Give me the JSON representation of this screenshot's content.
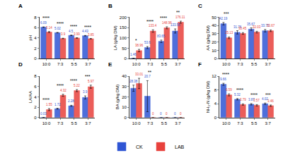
{
  "chart_data": [
    {
      "type": "bar",
      "label": "A",
      "y_label": "pH",
      "categories": [
        "10:0",
        "7:3",
        "5:5",
        "3:7"
      ],
      "series": [
        {
          "name": "CK",
          "color": "#2f55d4",
          "values": [
            6.09,
            5.02,
            4.5,
            4.43
          ],
          "errors": [
            0.05,
            0.05,
            0.05,
            0.05
          ]
        },
        {
          "name": "LAB",
          "color": "#e8413c",
          "values": [
            5.14,
            3.9,
            3.99,
            3.85
          ],
          "errors": [
            0.1,
            0.05,
            0.05,
            0.05
          ]
        }
      ],
      "significance": [
        "****",
        "****",
        "****",
        "****"
      ],
      "ylim": [
        0,
        8
      ],
      "yticks": [
        0,
        2,
        4,
        6,
        8
      ],
      "data_labels": true,
      "legend": "bottom"
    },
    {
      "type": "bar",
      "label": "B",
      "y_label": "LA (g/kg DM)",
      "categories": [
        "10:0",
        "7:3",
        "5:5",
        "3:7"
      ],
      "series": [
        {
          "name": "CK",
          "color": "#2f55d4",
          "values": [
            1.46,
            53.6,
            83.65,
            133.55
          ],
          "errors": [
            0.5,
            5,
            6,
            10
          ]
        },
        {
          "name": "LAB",
          "color": "#e8413c",
          "values": [
            38.96,
            133.4,
            148.96,
            176.11
          ],
          "errors": [
            6,
            6,
            5,
            5
          ]
        }
      ],
      "significance": [
        "*",
        "****",
        "****",
        "**"
      ],
      "ylim": [
        0,
        200
      ],
      "yticks": [
        0,
        50,
        100,
        150,
        200
      ],
      "data_labels": true
    },
    {
      "type": "bar",
      "label": "C",
      "y_label": "AA (g/kg DM)",
      "categories": [
        "10:0",
        "7:3",
        "5:5",
        "3:7"
      ],
      "series": [
        {
          "name": "CK",
          "color": "#2f55d4",
          "values": [
            42.19,
            31.76,
            35.67,
            33.75
          ],
          "errors": [
            1.5,
            2,
            1.5,
            1.5
          ]
        },
        {
          "name": "LAB",
          "color": "#e8413c",
          "values": [
            25.13,
            30.45,
            32.03,
            33.67
          ],
          "errors": [
            1,
            1,
            1,
            1
          ]
        }
      ],
      "significance": [
        "***",
        null,
        null,
        null
      ],
      "ylim": [
        0,
        50
      ],
      "yticks": [
        0,
        10,
        20,
        30,
        40,
        50
      ],
      "data_labels": true
    },
    {
      "type": "bar",
      "label": "D",
      "y_label": "LA/AA",
      "categories": [
        "10:0",
        "7:3",
        "5:5",
        "3:7"
      ],
      "series": [
        {
          "name": "CK",
          "color": "#2f55d4",
          "values": [
            0.03,
            1.72,
            2.28,
            3.9
          ],
          "errors": [
            0.01,
            0.1,
            0.1,
            0.3
          ]
        },
        {
          "name": "LAB",
          "color": "#e8413c",
          "values": [
            1.55,
            4.32,
            5.22,
            5.97
          ],
          "errors": [
            0.2,
            0.2,
            0.2,
            0.3
          ]
        }
      ],
      "significance": [
        "****",
        "****",
        "****",
        "***"
      ],
      "ylim": [
        0,
        8
      ],
      "yticks": [
        0,
        2,
        4,
        6,
        8
      ],
      "data_labels": true
    },
    {
      "type": "bar",
      "label": "E",
      "y_label": "BA (g/kg DM)",
      "categories": [
        "10:0",
        "7:3",
        "5:5",
        "3:7"
      ],
      "series": [
        {
          "name": "CK",
          "color": "#2f55d4",
          "values": [
            28.38,
            20.7,
            0,
            0
          ],
          "errors": [
            3,
            15,
            0,
            0
          ]
        },
        {
          "name": "LAB",
          "color": "#e8413c",
          "values": [
            33.01,
            0,
            0,
            0
          ],
          "errors": [
            5,
            0,
            0,
            0
          ]
        }
      ],
      "significance": [
        null,
        "**",
        null,
        null
      ],
      "ylim": [
        0,
        40
      ],
      "yticks": [
        0,
        10,
        20,
        30,
        40
      ],
      "data_labels": true
    },
    {
      "type": "bar",
      "label": "F",
      "y_label": "NH₃-N (g/kg DM)",
      "categories": [
        "10:0",
        "7:3",
        "5:5",
        "3:7"
      ],
      "series": [
        {
          "name": "CK",
          "color": "#2f55d4",
          "values": [
            9.66,
            5.32,
            3.87,
            4.02
          ],
          "errors": [
            0.3,
            0.2,
            0.2,
            0.2
          ]
        },
        {
          "name": "LAB",
          "color": "#e8413c",
          "values": [
            6.59,
            3.79,
            3.57,
            3.46
          ],
          "errors": [
            0.3,
            0.2,
            0.2,
            0.2
          ]
        }
      ],
      "significance": [
        "****",
        "****",
        "****",
        "***"
      ],
      "ylim": [
        0,
        12
      ],
      "yticks": [
        0,
        4,
        8,
        12
      ],
      "data_labels": true
    }
  ]
}
